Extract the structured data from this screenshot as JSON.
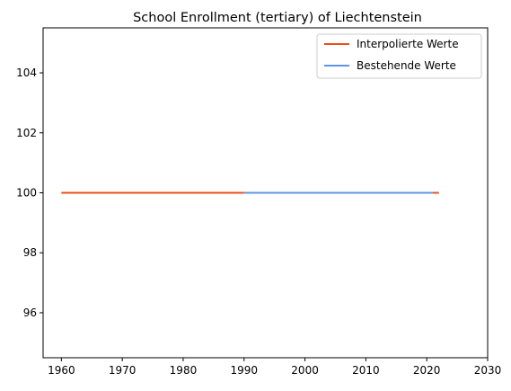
{
  "chart_data": {
    "type": "line",
    "title": "School Enrollment (tertiary) of Liechtenstein",
    "xlabel": "",
    "ylabel": "",
    "xlim": [
      1957,
      2030
    ],
    "ylim": [
      94.5,
      105.5
    ],
    "xticks": [
      1960,
      1970,
      1980,
      1990,
      2000,
      2010,
      2020,
      2030
    ],
    "yticks": [
      96,
      98,
      100,
      102,
      104
    ],
    "grid": false,
    "legend_position": "top-right",
    "series": [
      {
        "name": "Interpolierte Werte",
        "color": "#e8501a",
        "x": [
          1960,
          1990
        ],
        "y": [
          100,
          100
        ],
        "extra_segments": [
          [
            2021,
            2022
          ]
        ]
      },
      {
        "name": "Bestehende Werte",
        "color": "#5c95e6",
        "x": [
          1990,
          2021
        ],
        "y": [
          100,
          100
        ]
      }
    ]
  }
}
